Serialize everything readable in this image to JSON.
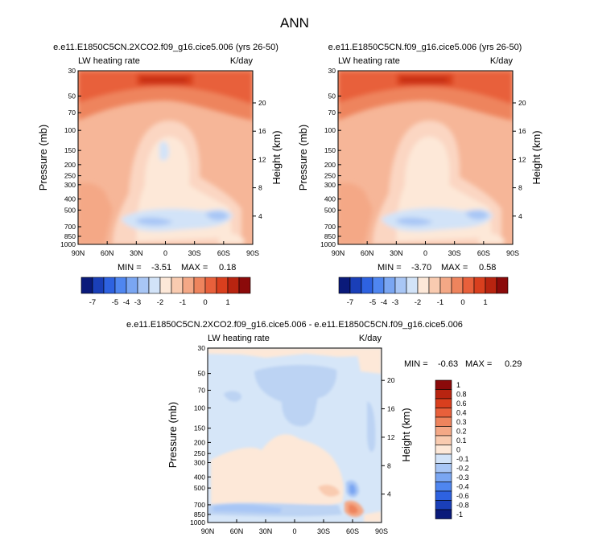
{
  "chart_data": {
    "type": "contour",
    "title": "ANN",
    "common": {
      "ylabel_left": "Pressure (mb)",
      "ylabel_right": "Height (km)",
      "field_label": "LW heating rate",
      "units": "K/day",
      "x_ticks": [
        "90N",
        "60N",
        "30N",
        "0",
        "30S",
        "60S",
        "90S"
      ],
      "pressure_ticks": [
        "30",
        "50",
        "70",
        "100",
        "150",
        "200",
        "250",
        "300",
        "400",
        "500",
        "700",
        "850",
        "1000"
      ],
      "height_ticks": [
        "20",
        "16",
        "12",
        "8",
        "4"
      ]
    },
    "panels": [
      {
        "subtitle": "e.e11.E1850C5CN.2XCO2.f09_g16.cice5.006 (yrs 26-50)",
        "min_label": "MIN = ",
        "min": "-3.51",
        "max_label": "MAX = ",
        "max": "0.18"
      },
      {
        "subtitle": "e.e11.E1850C5CN.f09_g16.cice5.006 (yrs 26-50)",
        "min_label": "MIN = ",
        "min": "-3.70",
        "max_label": "MAX = ",
        "max": "0.58"
      },
      {
        "subtitle": "e.e11.E1850C5CN.2XCO2.f09_g16.cice5.006 - e.e11.E1850C5CN.f09_g16.cice5.006",
        "min_label": "MIN = ",
        "min": "-0.63",
        "max_label": "MAX = ",
        "max": "0.29"
      }
    ],
    "colorbar_top": {
      "labels": [
        "-7",
        "-5",
        "-4",
        "-3",
        "-2",
        "-1",
        "0",
        "1"
      ],
      "colors": [
        "#0a1a7a",
        "#1a3fb8",
        "#2e62e0",
        "#4f86f0",
        "#7aa6f2",
        "#a8c6f5",
        "#d2e3f8",
        "#fde8d8",
        "#f9cbb0",
        "#f4a886",
        "#ee845d",
        "#e8603b",
        "#d93f1e",
        "#b82410",
        "#8b0a0a"
      ]
    },
    "colorbar_diff": {
      "labels": [
        "1",
        "0.8",
        "0.6",
        "0.4",
        "0.3",
        "0.2",
        "0.1",
        "0",
        "-0.1",
        "-0.2",
        "-0.3",
        "-0.4",
        "-0.6",
        "-0.8",
        "-1"
      ],
      "colors": [
        "#8b0a0a",
        "#b82410",
        "#d93f1e",
        "#e8603b",
        "#ee845d",
        "#f4a886",
        "#f9cbb0",
        "#fde8d8",
        "#d2e3f8",
        "#a8c6f5",
        "#7aa6f2",
        "#4f86f0",
        "#2e62e0",
        "#1a3fb8",
        "#0a1a7a"
      ]
    }
  }
}
